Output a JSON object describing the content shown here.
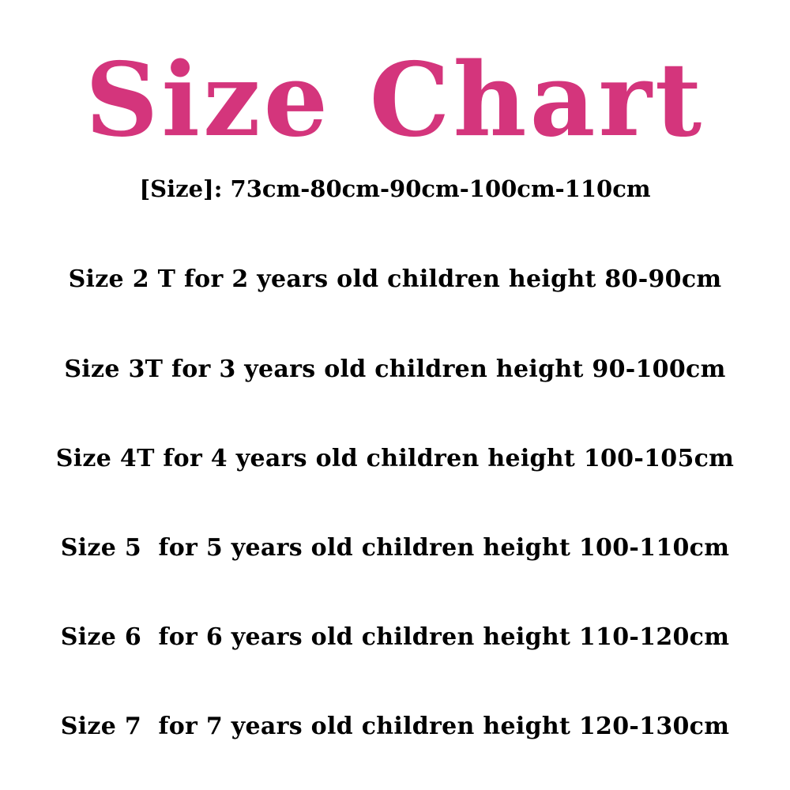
{
  "title": "Size Chart",
  "title_color": "#d4357c",
  "sizes_line": "[Size]: 73cm-80cm-90cm-100cm-110cm",
  "rows": [
    "Size 2 T for 2 years old children height 80-90cm",
    "Size 3T for 3 years old children height 90-100cm",
    "Size 4T for 4 years old children height 100-105cm",
    "Size 5  for 5 years old children height 100-110cm",
    "Size 6  for 6 years old children height 110-120cm",
    "Size 7  for 7 years old children height 120-130cm"
  ]
}
